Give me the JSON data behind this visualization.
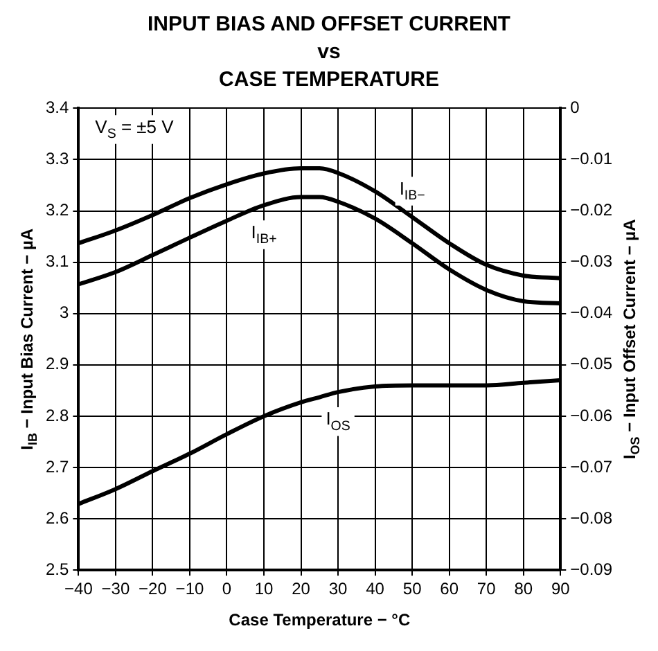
{
  "chart_data": {
    "type": "line",
    "title": "INPUT BIAS AND OFFSET CURRENT\nvs\nCASE TEMPERATURE",
    "xlabel": "Case Temperature − °C",
    "ylabel": "I$_{IB}$ − Input Bias Current − µA",
    "y2label": "I$_{OS}$ − Input Offset Current − µA",
    "annotations": [
      "V$_{S}$ = ±5 V"
    ],
    "x": [
      -40,
      -30,
      -20,
      -10,
      0,
      10,
      20,
      25,
      30,
      40,
      50,
      60,
      70,
      80,
      90
    ],
    "series": [
      {
        "name": "I$_{IB−}$",
        "color": "#000000",
        "values": [
          3.137,
          3.162,
          3.192,
          3.225,
          3.252,
          3.273,
          3.283,
          3.283,
          3.274,
          3.238,
          3.188,
          3.137,
          3.095,
          3.074,
          3.069
        ]
      },
      {
        "name": "I$_{IB+}$",
        "color": "#000000",
        "values": [
          3.057,
          3.081,
          3.114,
          3.148,
          3.181,
          3.211,
          3.227,
          3.227,
          3.218,
          3.185,
          3.137,
          3.086,
          3.046,
          3.024,
          3.02
        ]
      },
      {
        "name": "I$_{OS}$",
        "color": "#000000",
        "axis": "y2",
        "values": [
          -0.0771,
          -0.0742,
          -0.0707,
          -0.0673,
          -0.0635,
          -0.06,
          -0.0573,
          -0.0563,
          -0.0553,
          -0.0542,
          -0.054,
          -0.054,
          -0.054,
          -0.0535,
          -0.053
        ]
      }
    ],
    "xlim": [
      -40,
      90
    ],
    "xticks": [
      -40,
      -30,
      -20,
      -10,
      0,
      10,
      20,
      30,
      40,
      50,
      60,
      70,
      80,
      90
    ],
    "ylim": [
      2.5,
      3.4
    ],
    "yticks": [
      2.5,
      2.6,
      2.7,
      2.8,
      2.9,
      3,
      3.1,
      3.2,
      3.3,
      3.4
    ],
    "y2lim": [
      -0.09,
      0
    ],
    "y2ticks": [
      -0.09,
      -0.08,
      -0.07,
      -0.06,
      -0.05,
      -0.04,
      -0.03,
      -0.02,
      -0.01,
      0
    ],
    "grid": true,
    "legend": false,
    "marker": "none",
    "line_style": "solid"
  }
}
